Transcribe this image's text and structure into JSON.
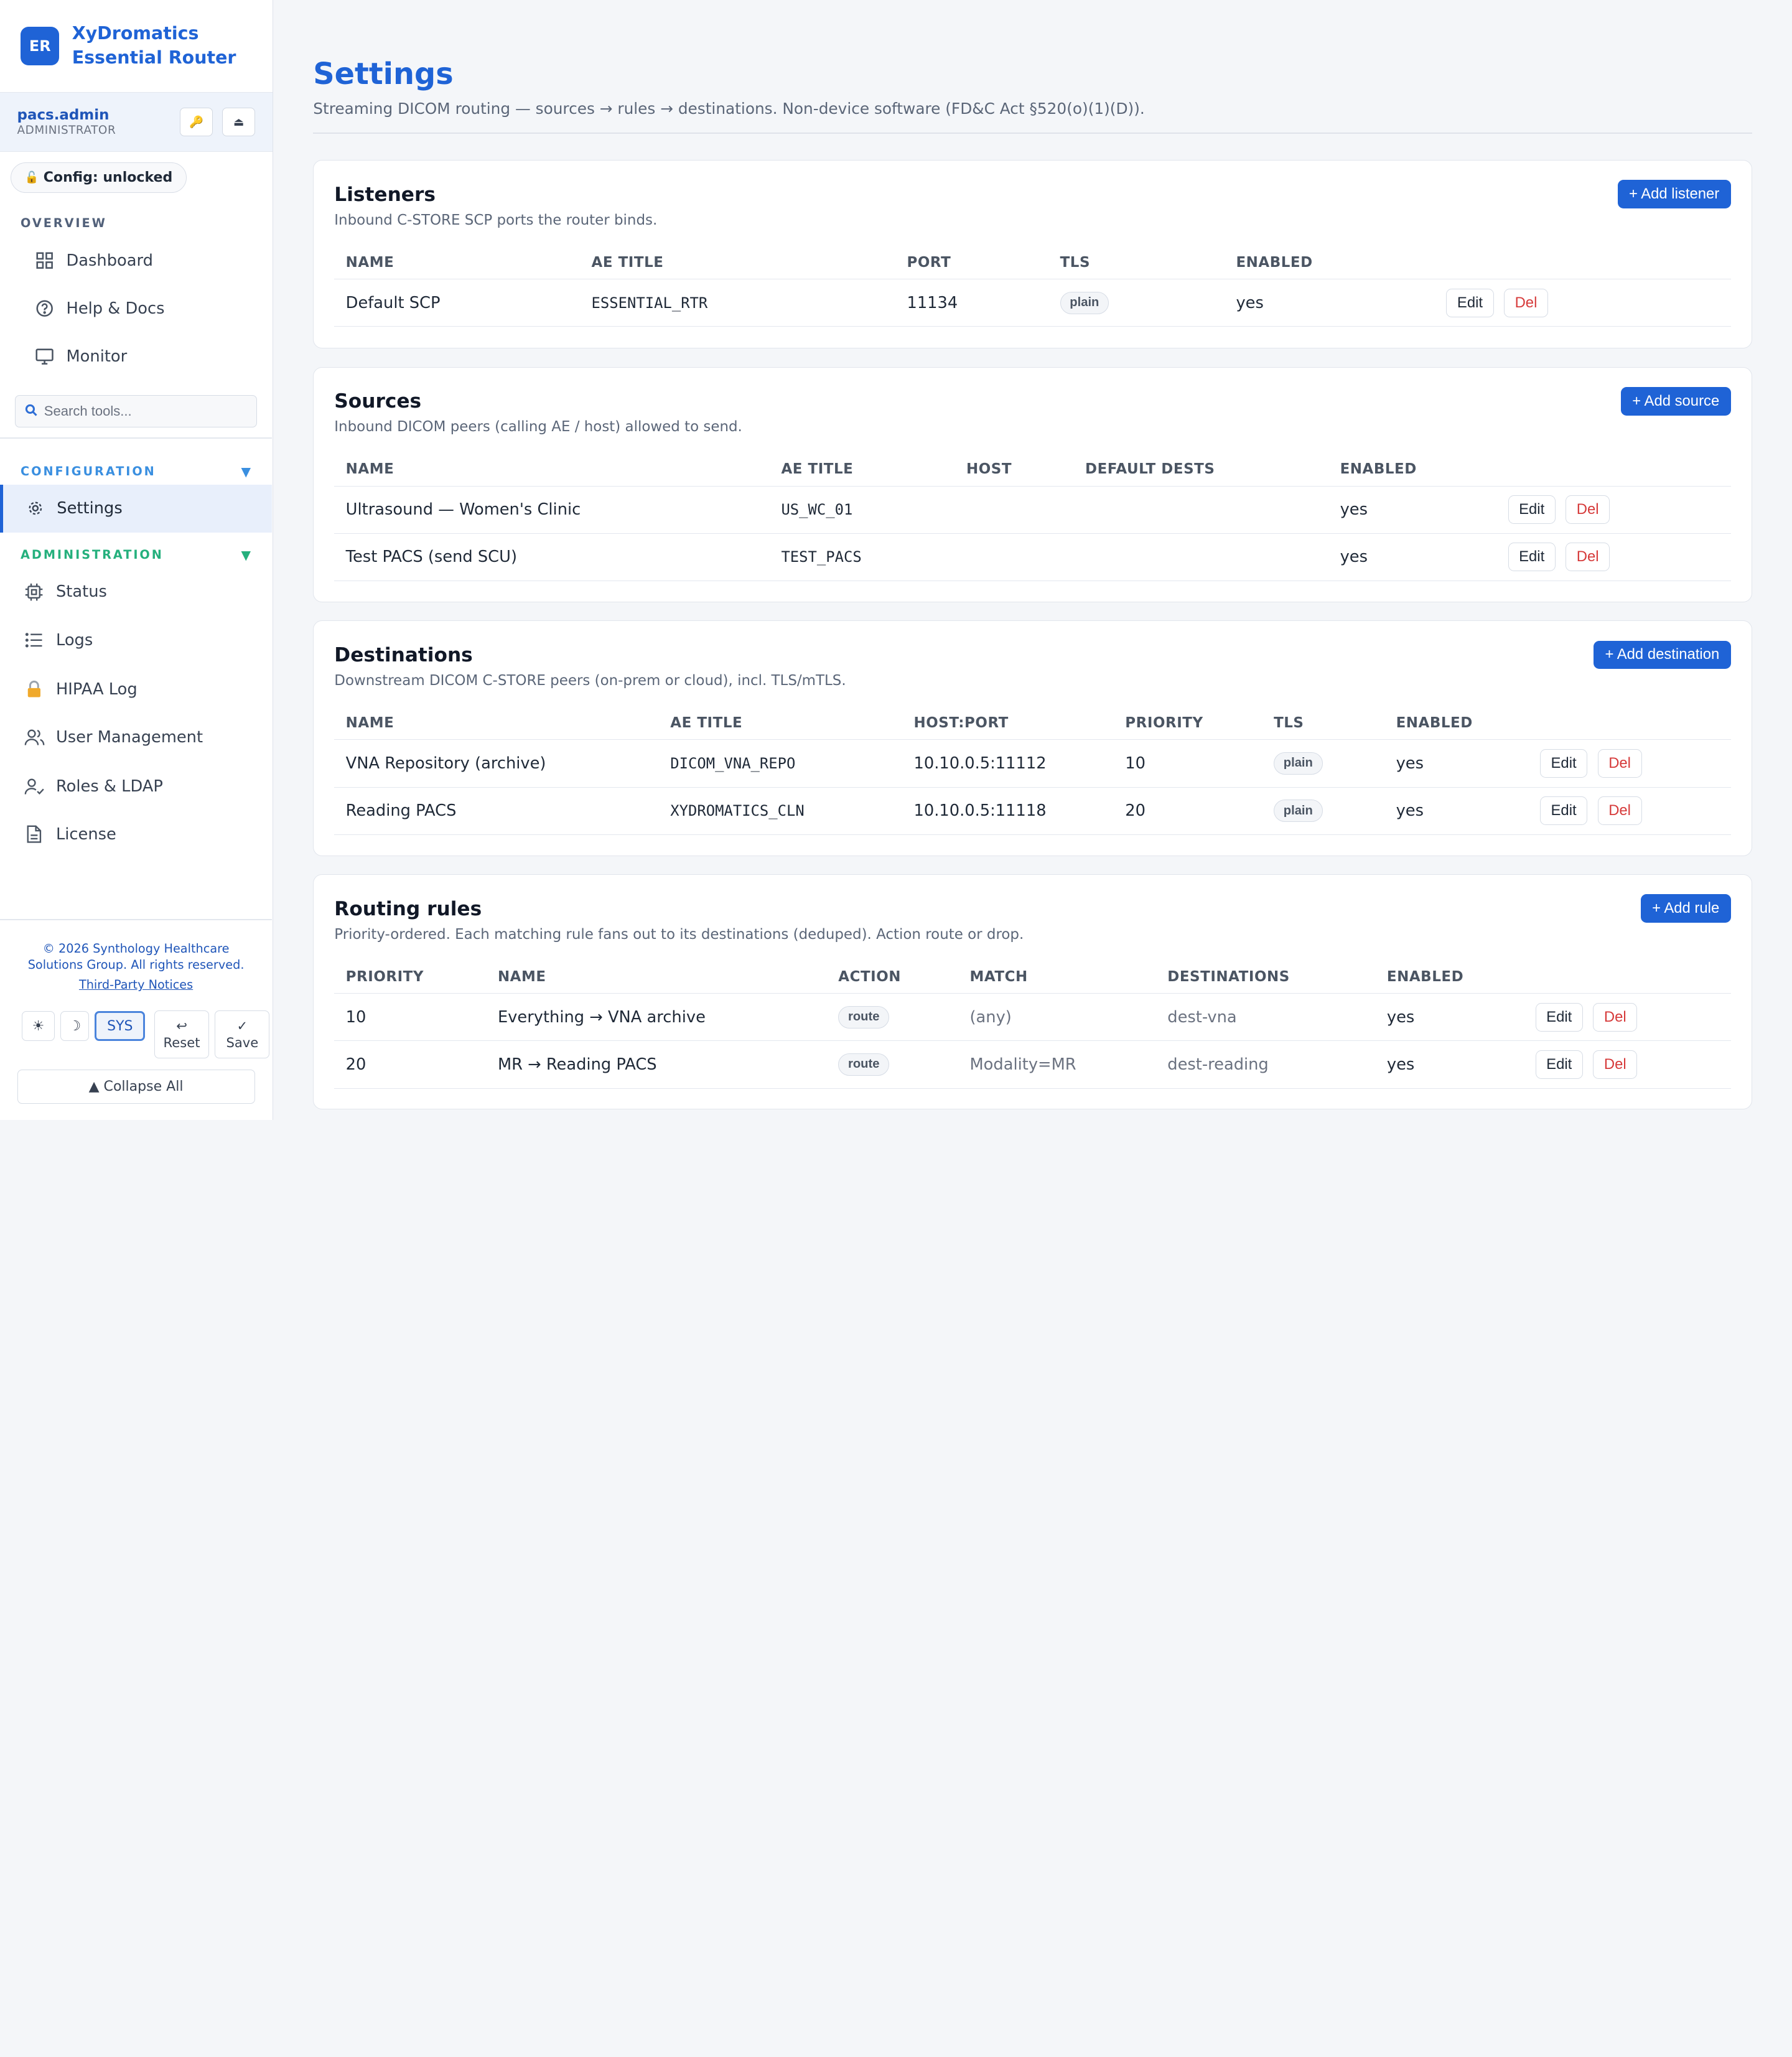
{
  "brand": {
    "logo": "ER",
    "name": "XyDromatics Essential Router"
  },
  "user": {
    "name": "pacs.admin",
    "role": "ADMINISTRATOR",
    "key_icon": "🔑",
    "eject_icon": "⏏"
  },
  "config": {
    "lock_icon": "🔓",
    "label": "Config: unlocked"
  },
  "sidebar": {
    "overview_label": "OVERVIEW",
    "overview_items": [
      {
        "label": "Dashboard",
        "icon": "grid-icon"
      },
      {
        "label": "Help & Docs",
        "icon": "help-icon"
      },
      {
        "label": "Monitor",
        "icon": "monitor-icon"
      }
    ],
    "search_placeholder": "Search tools...",
    "configuration_label": "CONFIGURATION",
    "configuration_caret": "▼",
    "configuration_items": [
      {
        "label": "Settings",
        "icon": "gear-icon"
      }
    ],
    "administration_label": "ADMINISTRATION",
    "administration_caret": "▼",
    "administration_items": [
      {
        "label": "Status",
        "icon": "chip-icon"
      },
      {
        "label": "Logs",
        "icon": "list-icon"
      },
      {
        "label": "HIPAA Log",
        "icon": "lock-icon"
      },
      {
        "label": "User Management",
        "icon": "users-icon"
      },
      {
        "label": "Roles & LDAP",
        "icon": "user-check-icon"
      },
      {
        "label": "License",
        "icon": "file-icon"
      }
    ],
    "copyright_line1": "© 2026 Synthology Healthcare",
    "copyright_line2": "Solutions Group. All rights reserved.",
    "notices": "Third-Party Notices",
    "theme_light": "☀",
    "theme_dark": "☽",
    "theme_sys": "SYS",
    "reset_icon": "↩",
    "reset_label": "Reset",
    "save_icon": "✓",
    "save_label": "Save",
    "collapse_label": "▲ Collapse All"
  },
  "page": {
    "title": "Settings",
    "subtitle": "Streaming DICOM routing — sources → rules → destinations. Non-device software (FD&C Act §520(o)(1)(D))."
  },
  "listeners": {
    "title": "Listeners",
    "subtitle": "Inbound C-STORE SCP ports the router binds.",
    "add_label": "+ Add listener",
    "columns": [
      "NAME",
      "AE TITLE",
      "PORT",
      "TLS",
      "ENABLED"
    ],
    "rows": [
      {
        "name": "Default SCP",
        "ae_title": "ESSENTIAL_RTR",
        "port": "11134",
        "tls": "plain",
        "enabled": "yes"
      }
    ]
  },
  "sources": {
    "title": "Sources",
    "subtitle": "Inbound DICOM peers (calling AE / host) allowed to send.",
    "add_label": "+ Add source",
    "columns": [
      "NAME",
      "AE TITLE",
      "HOST",
      "DEFAULT DESTS",
      "ENABLED"
    ],
    "rows": [
      {
        "name": "Ultrasound — Women's Clinic",
        "ae_title": "US_WC_01",
        "host": "",
        "default_dests": "",
        "enabled": "yes"
      },
      {
        "name": "Test PACS (send SCU)",
        "ae_title": "TEST_PACS",
        "host": "",
        "default_dests": "",
        "enabled": "yes"
      }
    ]
  },
  "destinations": {
    "title": "Destinations",
    "subtitle": "Downstream DICOM C-STORE peers (on-prem or cloud), incl. TLS/mTLS.",
    "add_label": "+ Add destination",
    "columns": [
      "NAME",
      "AE TITLE",
      "HOST:PORT",
      "PRIORITY",
      "TLS",
      "ENABLED"
    ],
    "rows": [
      {
        "name": "VNA Repository (archive)",
        "ae_title": "DICOM_VNA_REPO",
        "host_port": "10.10.0.5:11112",
        "priority": "10",
        "tls": "plain",
        "enabled": "yes"
      },
      {
        "name": "Reading PACS",
        "ae_title": "XYDROMATICS_CLN",
        "host_port": "10.10.0.5:11118",
        "priority": "20",
        "tls": "plain",
        "enabled": "yes"
      }
    ]
  },
  "rules": {
    "title": "Routing rules",
    "subtitle": "Priority-ordered. Each matching rule fans out to its destinations (deduped). Action route or drop.",
    "add_label": "+ Add rule",
    "columns": [
      "PRIORITY",
      "NAME",
      "ACTION",
      "MATCH",
      "DESTINATIONS",
      "ENABLED"
    ],
    "rows": [
      {
        "priority": "10",
        "name": "Everything → VNA archive",
        "action": "route",
        "match": "(any)",
        "destinations": "dest-vna",
        "enabled": "yes"
      },
      {
        "priority": "20",
        "name": "MR → Reading PACS",
        "action": "route",
        "match": "Modality=MR",
        "destinations": "dest-reading",
        "enabled": "yes"
      }
    ]
  },
  "row_actions": {
    "edit": "Edit",
    "del": "Del"
  },
  "colors": {
    "accent": "#1f63d6",
    "danger": "#d63a3a",
    "admin_green": "#25b07d",
    "config_blue": "#3a8fe0"
  }
}
